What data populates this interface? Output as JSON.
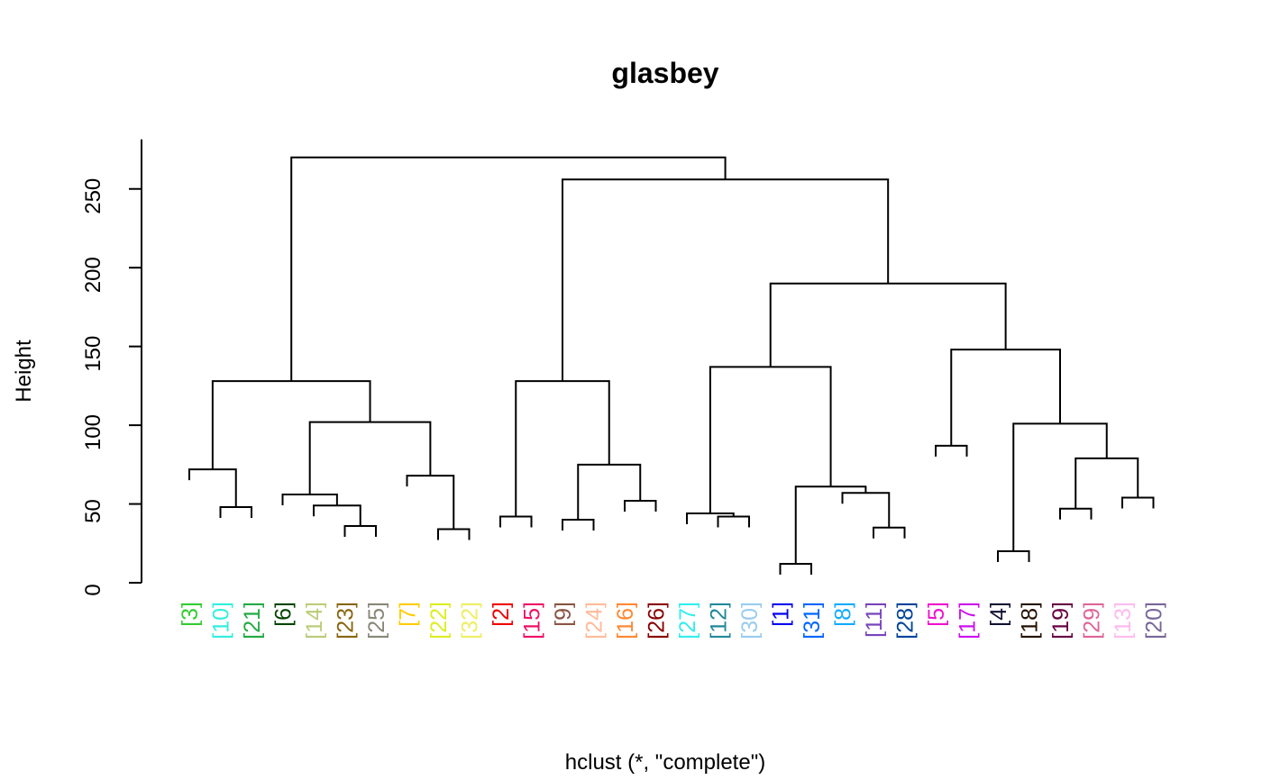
{
  "chart_data": {
    "type": "dendrogram",
    "title": "glasbey",
    "ylabel": "Height",
    "xlabel": "hclust (*, \"complete\")",
    "ylim": [
      0,
      270
    ],
    "yticks": [
      0,
      50,
      100,
      150,
      200,
      250
    ],
    "leaves": [
      {
        "label": "[3]",
        "color": "#33cc33"
      },
      {
        "label": "[10]",
        "color": "#33eedd"
      },
      {
        "label": "[21]",
        "color": "#22aa44"
      },
      {
        "label": "[6]",
        "color": "#004400"
      },
      {
        "label": "[14]",
        "color": "#bbcc77"
      },
      {
        "label": "[23]",
        "color": "#886611"
      },
      {
        "label": "[25]",
        "color": "#888877"
      },
      {
        "label": "[7]",
        "color": "#ffcc00"
      },
      {
        "label": "[22]",
        "color": "#ddee22"
      },
      {
        "label": "[32]",
        "color": "#eeee66"
      },
      {
        "label": "[2]",
        "color": "#ee0000"
      },
      {
        "label": "[15]",
        "color": "#ee1166"
      },
      {
        "label": "[9]",
        "color": "#885544"
      },
      {
        "label": "[24]",
        "color": "#ffbb99"
      },
      {
        "label": "[16]",
        "color": "#ff8833"
      },
      {
        "label": "[26]",
        "color": "#880000"
      },
      {
        "label": "[27]",
        "color": "#33eeee"
      },
      {
        "label": "[12]",
        "color": "#228899"
      },
      {
        "label": "[30]",
        "color": "#99ccee"
      },
      {
        "label": "[1]",
        "color": "#0000ee"
      },
      {
        "label": "[31]",
        "color": "#0066ff"
      },
      {
        "label": "[8]",
        "color": "#11aaff"
      },
      {
        "label": "[11]",
        "color": "#7744bb"
      },
      {
        "label": "[28]",
        "color": "#004499"
      },
      {
        "label": "[5]",
        "color": "#ee11cc"
      },
      {
        "label": "[17]",
        "color": "#cc11ee"
      },
      {
        "label": "[4]",
        "color": "#111133"
      },
      {
        "label": "[18]",
        "color": "#221100"
      },
      {
        "label": "[19]",
        "color": "#660044"
      },
      {
        "label": "[29]",
        "color": "#dd6699"
      },
      {
        "label": "[13]",
        "color": "#ffbbee"
      },
      {
        "label": "[20]",
        "color": "#776699"
      }
    ],
    "merges": [
      {
        "height": 48,
        "a": 1,
        "b": 2
      },
      {
        "height": 72,
        "a": 0,
        "b": "m0"
      },
      {
        "height": 36,
        "a": 5,
        "b": 6
      },
      {
        "height": 49,
        "a": 4,
        "b": "m2"
      },
      {
        "height": 56,
        "a": 3,
        "b": "m3"
      },
      {
        "height": 34,
        "a": 8,
        "b": 9
      },
      {
        "height": 68,
        "a": 7,
        "b": "m5"
      },
      {
        "height": 102,
        "a": "m4",
        "b": "m6"
      },
      {
        "height": 128,
        "a": "m1",
        "b": "m7"
      },
      {
        "height": 42,
        "a": 10,
        "b": 11
      },
      {
        "height": 40,
        "a": 12,
        "b": 13
      },
      {
        "height": 52,
        "a": 14,
        "b": 15
      },
      {
        "height": 75,
        "a": "m10",
        "b": "m11"
      },
      {
        "height": 128,
        "a": "m9",
        "b": "m12"
      },
      {
        "height": 42,
        "a": 17,
        "b": 18
      },
      {
        "height": 44,
        "a": 16,
        "b": "m14"
      },
      {
        "height": 12,
        "a": 19,
        "b": 20
      },
      {
        "height": 35,
        "a": 22,
        "b": 23
      },
      {
        "height": 57,
        "a": 21,
        "b": "m17"
      },
      {
        "height": 61,
        "a": "m16",
        "b": "m18"
      },
      {
        "height": 137,
        "a": "m15",
        "b": "m19"
      },
      {
        "height": 87,
        "a": 24,
        "b": 25
      },
      {
        "height": 20,
        "a": 26,
        "b": 27
      },
      {
        "height": 47,
        "a": 28,
        "b": 29
      },
      {
        "height": 54,
        "a": 30,
        "b": 31
      },
      {
        "height": 79,
        "a": "m23",
        "b": "m24"
      },
      {
        "height": 101,
        "a": "m22",
        "b": "m25"
      },
      {
        "height": 148,
        "a": "m21",
        "b": "m26"
      },
      {
        "height": 190,
        "a": "m20",
        "b": "m27"
      },
      {
        "height": 256,
        "a": "m13",
        "b": "m28"
      },
      {
        "height": 270,
        "a": "m8",
        "b": "m29"
      }
    ]
  }
}
